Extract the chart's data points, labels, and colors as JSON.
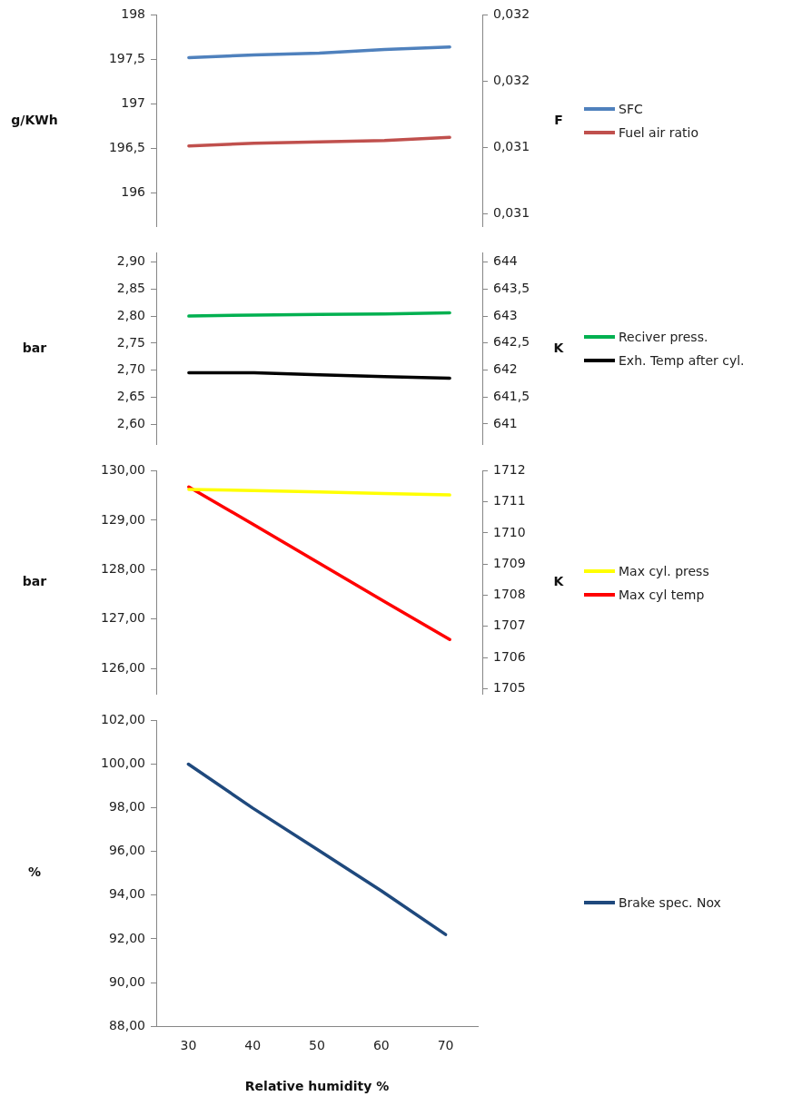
{
  "chart_data": [
    {
      "type": "line",
      "ylabel": "g/KWh",
      "y2label": "F",
      "categories": [
        "30",
        "40",
        "50",
        "60",
        "70"
      ],
      "tick_labels": "y",
      "legend": "right",
      "marker": "none",
      "grid": false,
      "ylim": [
        195.62,
        198
      ],
      "yticks": [
        {
          "value": 196,
          "label": "196"
        },
        {
          "value": 196.5,
          "label": "196,5"
        },
        {
          "value": 197,
          "label": "197"
        },
        {
          "value": 197.5,
          "label": "197,5"
        },
        {
          "value": 198,
          "label": "198"
        }
      ],
      "y2lim": [
        0.03116,
        0.0318
      ],
      "y2ticks": [
        {
          "value": 0.0312,
          "label": "0,031"
        },
        {
          "value": 0.0314,
          "label": "0,031"
        },
        {
          "value": 0.0316,
          "label": "0,032"
        },
        {
          "value": 0.0318,
          "label": "0,032"
        }
      ],
      "series": [
        {
          "name": "SFC",
          "color": "#4f81bd",
          "values": [
            197.52,
            197.55,
            197.57,
            197.61,
            197.64
          ]
        },
        {
          "name": "Fuel air ratio",
          "color": "#c0504d",
          "axis": "y2",
          "values": [
            0.031404,
            0.031412,
            0.031416,
            0.03142,
            0.03143
          ]
        }
      ]
    },
    {
      "type": "line",
      "ylabel": "bar",
      "y2label": "K",
      "categories": [
        "30",
        "40",
        "50",
        "60",
        "70"
      ],
      "tick_labels": "y",
      "legend": "right",
      "marker": "none",
      "grid": false,
      "ylim": [
        2.5625,
        2.917
      ],
      "yticks": [
        {
          "value": 2.6,
          "label": "2,60"
        },
        {
          "value": 2.65,
          "label": "2,65"
        },
        {
          "value": 2.7,
          "label": "2,70"
        },
        {
          "value": 2.75,
          "label": "2,75"
        },
        {
          "value": 2.8,
          "label": "2,80"
        },
        {
          "value": 2.85,
          "label": "2,85"
        },
        {
          "value": 2.9,
          "label": "2,90"
        }
      ],
      "y2lim": [
        640.62,
        644.17
      ],
      "y2ticks": [
        641,
        {
          "value": 641.5,
          "label": "641,5"
        },
        642,
        {
          "value": 642.5,
          "label": "642,5"
        },
        643,
        {
          "value": 643.5,
          "label": "643,5"
        },
        644
      ],
      "series": [
        {
          "name": "Reciver press.",
          "color": "#00b050",
          "values": [
            2.8,
            2.802,
            2.803,
            2.804,
            2.806
          ]
        },
        {
          "name": "Exh. Temp after cyl.",
          "color": "#000000",
          "axis": "y2",
          "values": [
            641.95,
            641.95,
            641.91,
            641.88,
            641.85
          ]
        }
      ]
    },
    {
      "type": "line",
      "ylabel": "bar",
      "y2label": "K",
      "categories": [
        "30",
        "40",
        "50",
        "60",
        "70"
      ],
      "tick_labels": "y",
      "legend": "right",
      "marker": "none",
      "grid": false,
      "ylim": [
        125.48,
        130
      ],
      "yticks": [
        {
          "value": 126,
          "label": "126,00"
        },
        {
          "value": 127,
          "label": "127,00"
        },
        {
          "value": 128,
          "label": "128,00"
        },
        {
          "value": 129,
          "label": "129,00"
        },
        {
          "value": 130,
          "label": "130,00"
        }
      ],
      "y2lim": [
        1704.82,
        1712
      ],
      "y2ticks": [
        1705,
        1706,
        1707,
        1708,
        1709,
        1710,
        1711,
        1712
      ],
      "series": [
        {
          "name": "Max cyl. press",
          "color": "#ffff00",
          "values": [
            129.62,
            129.6,
            129.57,
            129.54,
            129.51
          ]
        },
        {
          "name": "Max cyl temp",
          "color": "#ff0000",
          "axis": "y2",
          "values": [
            1711.48,
            1710.26,
            1709.03,
            1707.8,
            1706.58
          ]
        }
      ]
    },
    {
      "type": "line",
      "ylabel": "%",
      "xlabel": "Relative humidity %",
      "categories": [
        "30",
        "40",
        "50",
        "60",
        "70"
      ],
      "legend": "right",
      "marker": "none",
      "grid": false,
      "ylim": [
        88,
        102
      ],
      "yticks": [
        {
          "value": 88,
          "label": "88,00"
        },
        {
          "value": 90,
          "label": "90,00"
        },
        {
          "value": 92,
          "label": "92,00"
        },
        {
          "value": 94,
          "label": "94,00"
        },
        {
          "value": 96,
          "label": "96,00"
        },
        {
          "value": 98,
          "label": "98,00"
        },
        {
          "value": 100,
          "label": "100,00"
        },
        {
          "value": 102,
          "label": "102,00"
        }
      ],
      "series": [
        {
          "name": "Brake spec. Nox",
          "color": "#1f497d",
          "values": [
            100,
            97.99,
            96.1,
            94.2,
            92.2
          ]
        }
      ]
    }
  ]
}
